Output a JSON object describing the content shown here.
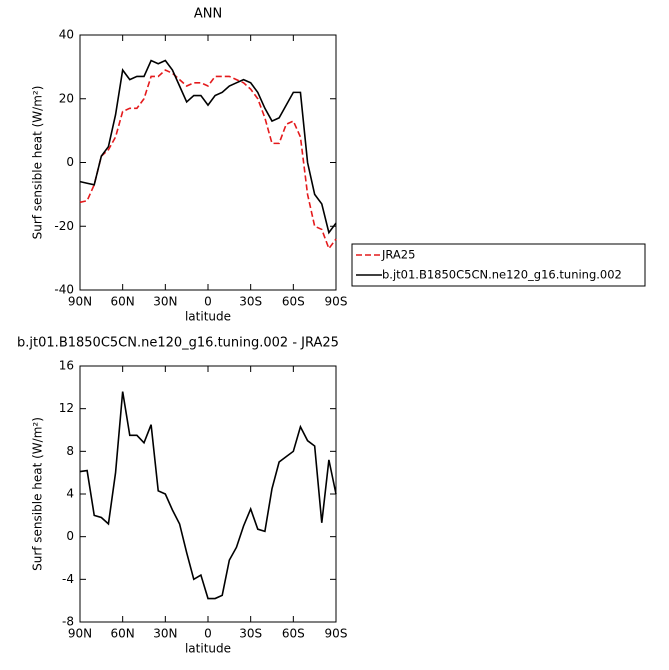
{
  "chart_data": [
    {
      "type": "line",
      "title": "ANN",
      "x_label": "latitude",
      "y_label": "Surf sensible heat (W/m²)",
      "x": [
        90,
        85,
        80,
        75,
        70,
        65,
        60,
        55,
        50,
        45,
        40,
        35,
        30,
        25,
        20,
        15,
        10,
        5,
        0,
        -5,
        -10,
        -15,
        -20,
        -25,
        -30,
        -35,
        -40,
        -45,
        -50,
        -55,
        -60,
        -65,
        -70,
        -75,
        -80,
        -85,
        -90
      ],
      "series": [
        {
          "name": "JRA25",
          "color": "#e41a1c",
          "dash": true,
          "values": [
            -12.5,
            -12,
            -7,
            2,
            4,
            8,
            16,
            17,
            17,
            20,
            27,
            27,
            29,
            28,
            26,
            24,
            25,
            25,
            24,
            27,
            27,
            27,
            26,
            25,
            23,
            20,
            14,
            6,
            6,
            12,
            13,
            8,
            -10,
            -20,
            -21,
            -27,
            -24
          ]
        },
        {
          "name": "b.jt01.B1850C5CN.ne120_g16.tuning.002",
          "color": "#000000",
          "dash": false,
          "values": [
            -6,
            -6.5,
            -7,
            2,
            5,
            15,
            29,
            26,
            27,
            27,
            32,
            31,
            32,
            29,
            24,
            19,
            21,
            21,
            18,
            21,
            22,
            24,
            25,
            26,
            25,
            22,
            17,
            13,
            14,
            18,
            22,
            22,
            0,
            -10,
            -13,
            -22,
            -19
          ]
        }
      ],
      "xlim": [
        90,
        -90
      ],
      "xticks": [
        {
          "value": 90,
          "label": "90N"
        },
        {
          "value": 60,
          "label": "60N"
        },
        {
          "value": 30,
          "label": "30N"
        },
        0,
        {
          "value": -30,
          "label": "30S"
        },
        {
          "value": -60,
          "label": "60S"
        },
        {
          "value": -90,
          "label": "90S"
        }
      ],
      "ylim": [
        -40,
        40
      ],
      "yticks": [
        -40,
        -20,
        0,
        20,
        40
      ],
      "legend": "outside-right"
    },
    {
      "type": "line",
      "title": "b.jt01.B1850C5CN.ne120_g16.tuning.002 - JRA25",
      "x_label": "latitude",
      "y_label": "Surf sensible heat (W/m²)",
      "x": [
        90,
        85,
        80,
        75,
        70,
        65,
        60,
        55,
        50,
        45,
        40,
        35,
        30,
        25,
        20,
        15,
        10,
        5,
        0,
        -5,
        -10,
        -15,
        -20,
        -25,
        -30,
        -35,
        -40,
        -45,
        -50,
        -55,
        -60,
        -65,
        -70,
        -75,
        -80,
        -85,
        -90
      ],
      "series": [
        {
          "color": "#000000",
          "dash": false,
          "values": [
            6.1,
            6.2,
            2,
            1.8,
            1.2,
            6,
            13.6,
            9.5,
            9.5,
            8.8,
            10.5,
            4.3,
            4,
            2.5,
            1.2,
            -1.5,
            -4,
            -3.6,
            -5.8,
            -5.8,
            -5.5,
            -2.2,
            -1,
            1,
            2.6,
            0.7,
            0.5,
            4.5,
            7,
            7.5,
            8,
            10.3,
            9,
            8.5,
            1.3,
            7.2,
            4
          ]
        }
      ],
      "xlim": [
        90,
        -90
      ],
      "xticks": [
        {
          "value": 90,
          "label": "90N"
        },
        {
          "value": 60,
          "label": "60N"
        },
        {
          "value": 30,
          "label": "30N"
        },
        0,
        {
          "value": -30,
          "label": "30S"
        },
        {
          "value": -60,
          "label": "60S"
        },
        {
          "value": -90,
          "label": "90S"
        }
      ],
      "ylim": [
        -8,
        16
      ],
      "yticks": [
        -8,
        -4,
        0,
        4,
        8,
        12,
        16
      ]
    }
  ]
}
